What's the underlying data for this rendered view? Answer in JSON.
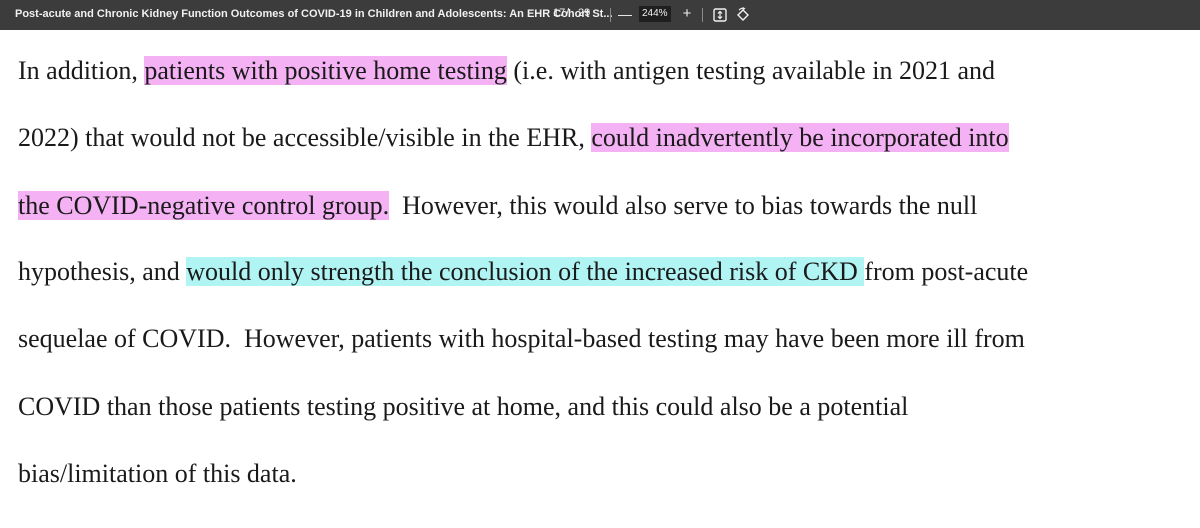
{
  "toolbar": {
    "title": "Post-acute and Chronic Kidney Function Outcomes of COVID-19 in Children and Adolescents: An EHR Cohort St...",
    "current_page": "17",
    "page_separator": "/",
    "total_pages": "29",
    "zoom_out_label": "—",
    "zoom": "244%",
    "zoom_in_label": "+",
    "icons": [
      "fit-page-icon",
      "rotate-icon"
    ]
  },
  "highlight_colors": {
    "pink": "#f4b1f4",
    "cyan": "#b1f4f4"
  },
  "document": {
    "lines": [
      [
        {
          "text": "In addition, ",
          "hl": ""
        },
        {
          "text": "patients with positive home testing",
          "hl": "pink"
        },
        {
          "text": " (i.e. with antigen testing available in 2021 and",
          "hl": ""
        }
      ],
      [
        {
          "text": "2022) that would not be accessible/visible in the EHR, ",
          "hl": ""
        },
        {
          "text": "could inadvertently be incorporated into",
          "hl": "pink"
        }
      ],
      [
        {
          "text": "the COVID-negative control group.",
          "hl": "pink"
        },
        {
          "text": "  However, this would also serve to bias towards the null",
          "hl": ""
        }
      ],
      [
        {
          "text": "hypothesis, and ",
          "hl": ""
        },
        {
          "text": "would only strength the conclusion of the increased risk of CKD ",
          "hl": "cyan"
        },
        {
          "text": "from post-acute",
          "hl": ""
        }
      ],
      [
        {
          "text": "sequelae of COVID.  However, patients with hospital-based testing may have been more ill from",
          "hl": ""
        }
      ],
      [
        {
          "text": "COVID than those patients testing positive at home, and this could also be a potential",
          "hl": ""
        }
      ],
      [
        {
          "text": "bias/limitation of this data.",
          "hl": ""
        }
      ]
    ]
  }
}
